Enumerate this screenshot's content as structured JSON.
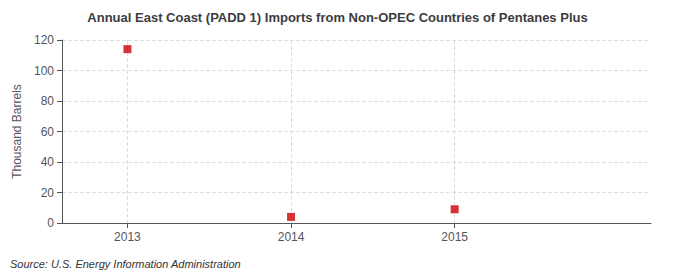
{
  "chart_data": {
    "type": "scatter",
    "title": "Annual East Coast (PADD 1) Imports from Non-OPEC Countries of Pentanes Plus",
    "ylabel": "Thousand Barrels",
    "source": "Source: U.S. Energy Information Administration",
    "x": [
      2013,
      2014,
      2015
    ],
    "values": [
      114,
      4,
      9
    ],
    "xlim": [
      2012.6,
      2016.2
    ],
    "xticks": [
      2013,
      2014,
      2015
    ],
    "ylim": [
      0,
      120
    ],
    "yticks": [
      0,
      20,
      40,
      60,
      80,
      100,
      120
    ],
    "color": "#cc0000",
    "marker": "square",
    "grid": true
  }
}
